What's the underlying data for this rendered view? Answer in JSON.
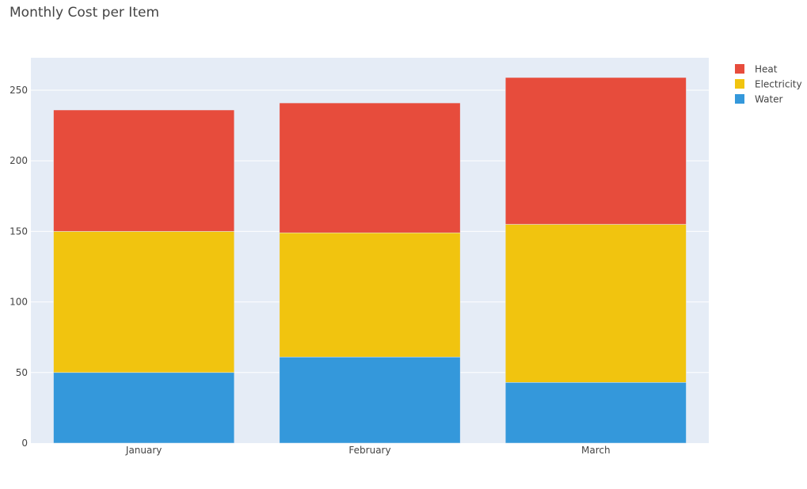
{
  "chart_data": {
    "type": "bar",
    "stacked": true,
    "title": "Monthly Cost per Item",
    "categories": [
      "January",
      "February",
      "March"
    ],
    "series": [
      {
        "name": "Water",
        "values": [
          50,
          61,
          43
        ],
        "color": "#3498db"
      },
      {
        "name": "Electricity",
        "values": [
          100,
          88,
          112
        ],
        "color": "#f1c40f"
      },
      {
        "name": "Heat",
        "values": [
          86,
          92,
          104
        ],
        "color": "#e74c3c"
      }
    ],
    "ylim": [
      0,
      273
    ],
    "yticks": [
      0,
      50,
      100,
      150,
      200,
      250
    ],
    "grid": true,
    "legend_position": "top-right",
    "legend_order": [
      "Heat",
      "Electricity",
      "Water"
    ],
    "plot_background": "#e5ecf6"
  }
}
